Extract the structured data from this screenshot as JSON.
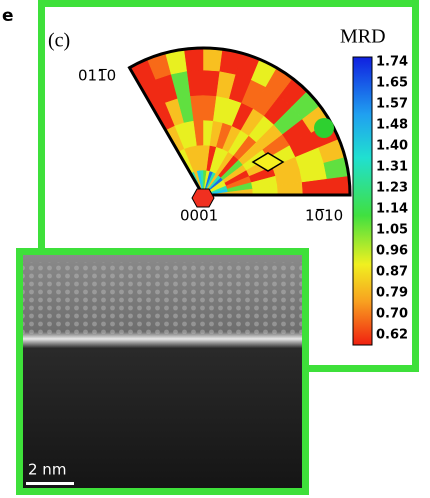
{
  "panel_label": "e",
  "inset_label": "(c)",
  "colorbar": {
    "title": "MRD",
    "ticks": [
      "1.74",
      "1.65",
      "1.57",
      "1.48",
      "1.40",
      "1.31",
      "1.23",
      "1.14",
      "1.05",
      "0.96",
      "0.87",
      "0.79",
      "0.70",
      "0.62"
    ]
  },
  "pole_labels": {
    "left": "011̅0",
    "center": "0001",
    "right": "10̅10"
  },
  "scale_bar": "2 nm"
}
